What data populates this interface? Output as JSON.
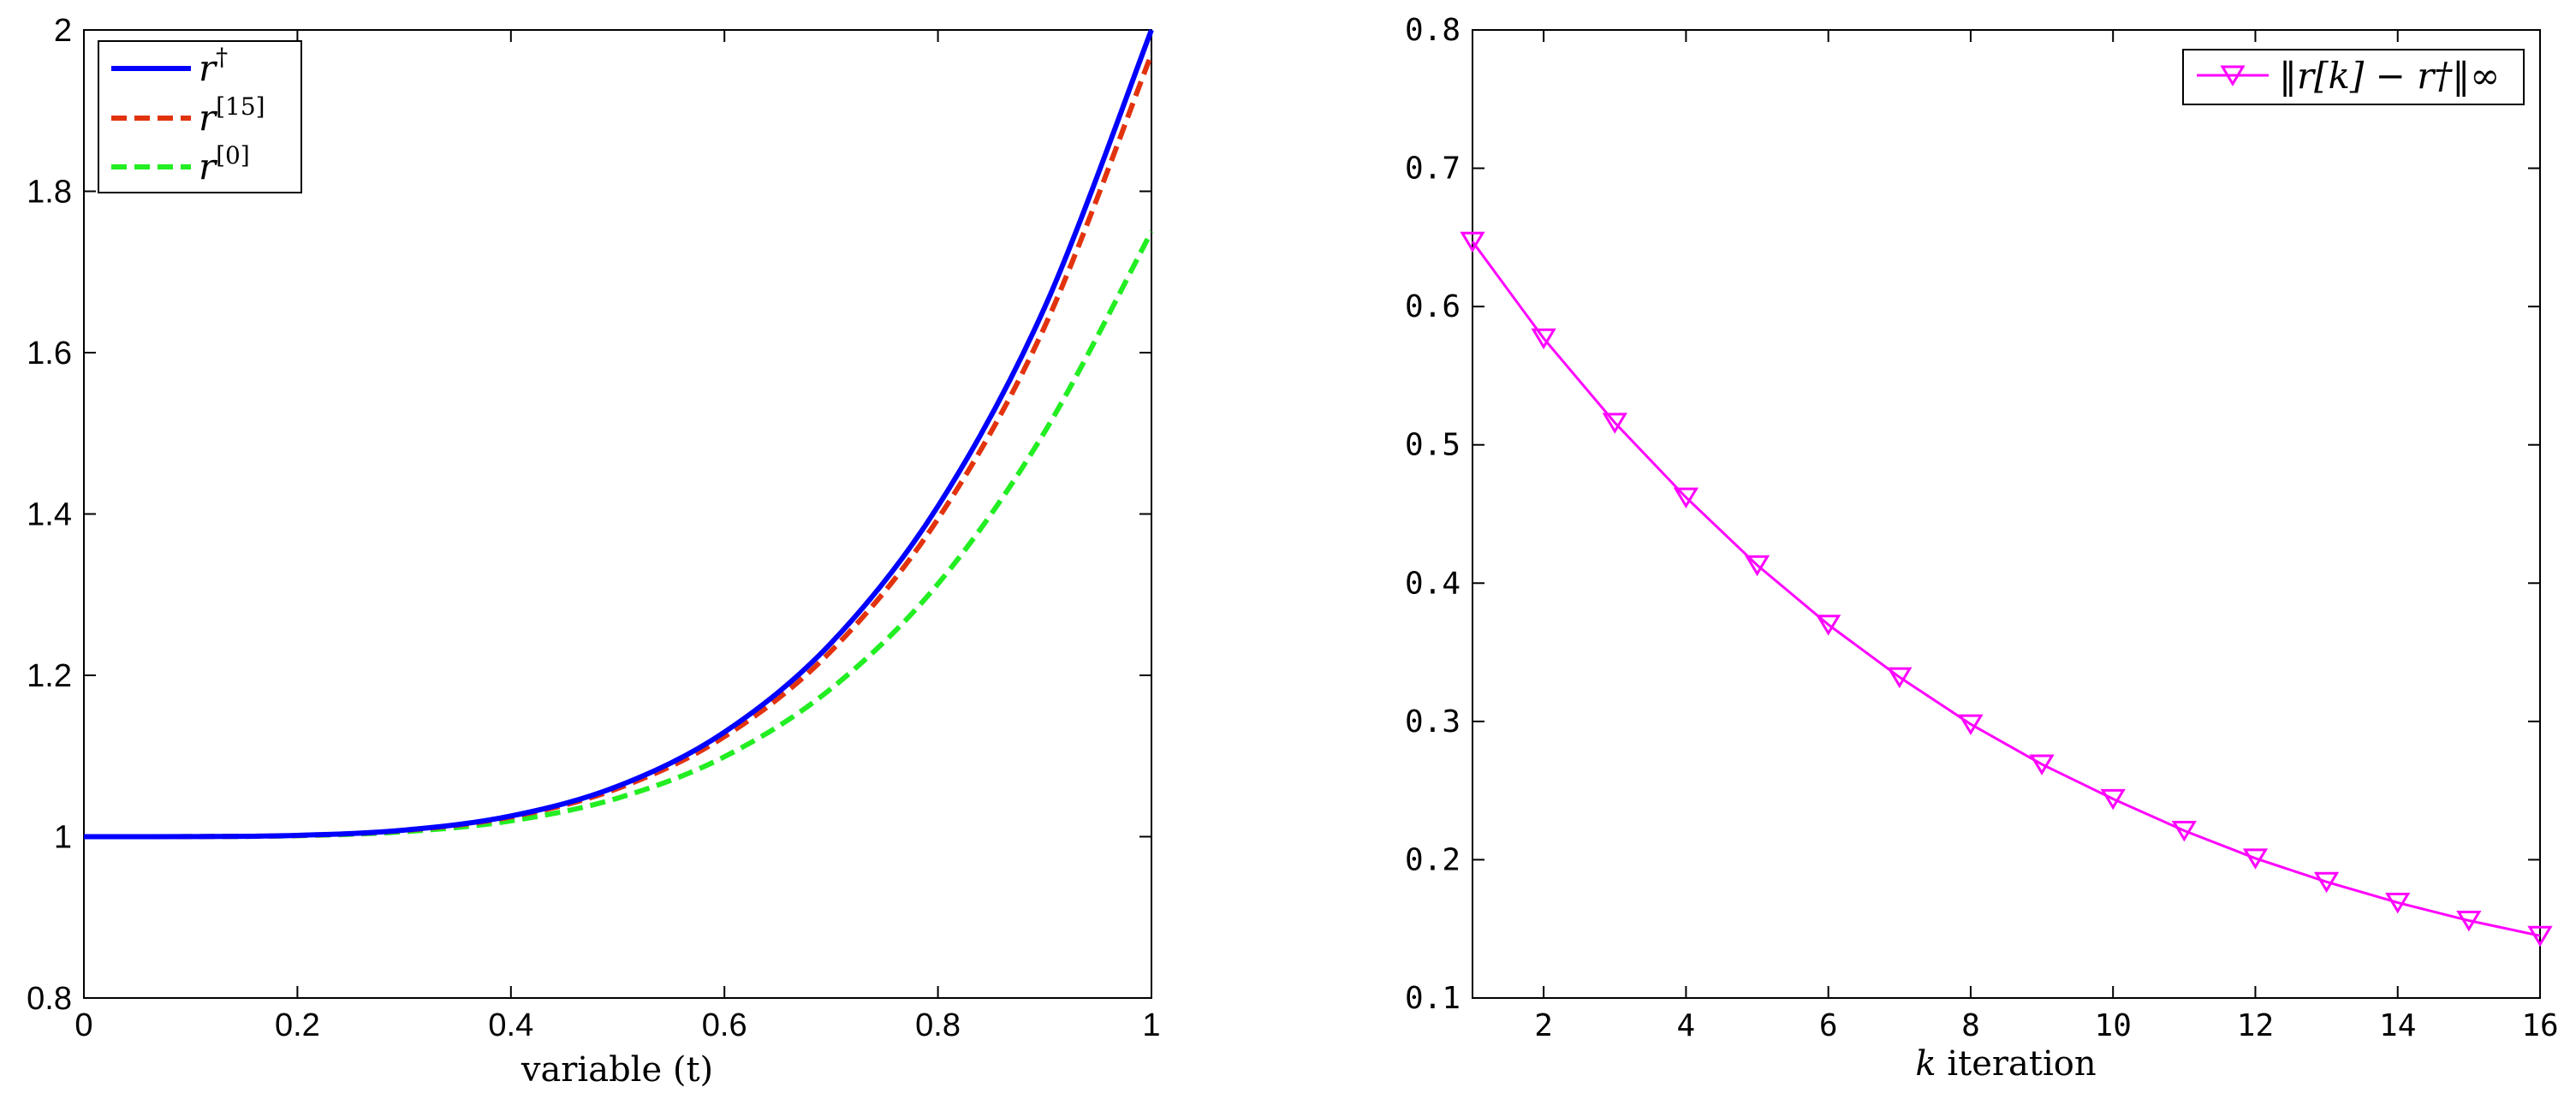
{
  "chart_data": [
    {
      "type": "line",
      "xlabel": "variable (t)",
      "ylabel": "",
      "xlim": [
        0,
        1
      ],
      "ylim": [
        0.8,
        2
      ],
      "xticks": [
        "0",
        "0.2",
        "0.4",
        "0.6",
        "0.8",
        "1"
      ],
      "yticks": [
        "0.8",
        "1",
        "1.2",
        "1.4",
        "1.6",
        "1.8",
        "2"
      ],
      "grid": false,
      "legend_position": "top-left",
      "series": [
        {
          "name": "r†",
          "base": "r",
          "sup": "†",
          "color": "#0000ff",
          "style": "solid",
          "x": [
            0,
            0.1,
            0.2,
            0.3,
            0.4,
            0.5,
            0.6,
            0.7,
            0.8,
            0.9,
            1.0
          ],
          "y": [
            1.0,
            1.0001,
            1.0016,
            1.0081,
            1.0256,
            1.0625,
            1.1296,
            1.2401,
            1.4096,
            1.6561,
            2.0
          ]
        },
        {
          "name": "r[15]",
          "base": "r",
          "sup": "[15]",
          "color": "#e2330f",
          "style": "dashed",
          "x": [
            0,
            0.1,
            0.2,
            0.3,
            0.4,
            0.5,
            0.6,
            0.7,
            0.8,
            0.9,
            1.0
          ],
          "y": [
            1.0,
            1.0001,
            1.0015,
            1.0078,
            1.0245,
            1.0597,
            1.124,
            1.2302,
            1.3939,
            1.6323,
            1.97
          ]
        },
        {
          "name": "r[0]",
          "base": "r",
          "sup": "[0]",
          "color": "#22ee22",
          "style": "dashed",
          "x": [
            0,
            0.1,
            0.2,
            0.3,
            0.4,
            0.5,
            0.6,
            0.7,
            0.8,
            0.9,
            1.0
          ],
          "y": [
            1.0,
            1.0001,
            1.0012,
            1.0062,
            1.0196,
            1.0478,
            1.0991,
            1.1836,
            1.3133,
            1.5018,
            1.75
          ]
        }
      ]
    },
    {
      "type": "line",
      "xlabel": "k iteration",
      "ylabel": "",
      "xlim": [
        1,
        16
      ],
      "ylim": [
        0.1,
        0.8
      ],
      "xticks": [
        "2",
        "4",
        "6",
        "8",
        "10",
        "12",
        "14",
        "16"
      ],
      "yticks": [
        "0.1",
        "0.2",
        "0.3",
        "0.4",
        "0.5",
        "0.6",
        "0.7",
        "0.8"
      ],
      "grid": false,
      "legend_position": "top-right",
      "series": [
        {
          "name": "‖r[k] − r†‖∞",
          "color": "#ff00ff",
          "style": "solid",
          "marker": "down-triangle",
          "x": [
            1,
            2,
            3,
            4,
            5,
            6,
            7,
            8,
            9,
            10,
            11,
            12,
            13,
            14,
            15,
            16
          ],
          "y": [
            0.647,
            0.577,
            0.516,
            0.462,
            0.413,
            0.37,
            0.332,
            0.298,
            0.269,
            0.244,
            0.221,
            0.201,
            0.184,
            0.169,
            0.156,
            0.145
          ]
        }
      ]
    }
  ]
}
